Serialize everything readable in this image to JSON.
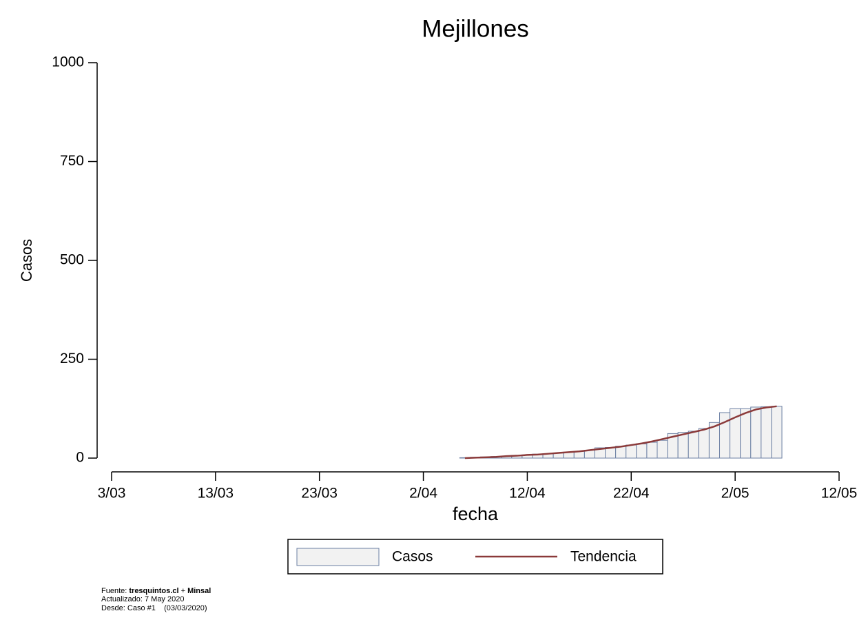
{
  "chart_data": {
    "type": "bar",
    "title": "Mejillones",
    "xlabel": "fecha",
    "ylabel": "Casos",
    "x": [
      "6/04",
      "7/04",
      "8/04",
      "9/04",
      "10/04",
      "11/04",
      "12/04",
      "13/04",
      "14/04",
      "15/04",
      "16/04",
      "17/04",
      "18/04",
      "19/04",
      "20/04",
      "21/04",
      "22/04",
      "23/04",
      "24/04",
      "25/04",
      "26/04",
      "27/04",
      "28/04",
      "29/04",
      "30/04",
      "1/05",
      "2/05",
      "3/05",
      "4/05",
      "5/05",
      "6/05"
    ],
    "series": [
      {
        "name": "Casos",
        "type": "bar",
        "color": "#f2f2f2",
        "edgecolor": "#6b7fa3",
        "values": [
          1,
          2,
          3,
          4,
          5,
          7,
          8,
          10,
          11,
          13,
          15,
          17,
          20,
          26,
          27,
          30,
          33,
          36,
          40,
          45,
          62,
          65,
          68,
          75,
          90,
          115,
          125,
          125,
          129,
          130,
          131
        ]
      },
      {
        "name": "Tendencia",
        "type": "line",
        "color": "#8b3a3a",
        "values": [
          0,
          1,
          2,
          3,
          5,
          6,
          8,
          9,
          11,
          13,
          15,
          17,
          20,
          23,
          26,
          29,
          33,
          37,
          42,
          48,
          54,
          60,
          66,
          72,
          80,
          91,
          103,
          114,
          123,
          128,
          131
        ]
      }
    ],
    "xlim": [
      "3/03",
      "12/05"
    ],
    "xticks": [
      "3/03",
      "13/03",
      "23/03",
      "2/04",
      "12/04",
      "22/04",
      "2/05",
      "12/05"
    ],
    "ylim": [
      0,
      1000
    ],
    "yticks": [
      0,
      250,
      500,
      750,
      1000
    ],
    "grid": false,
    "legend": "bottom"
  },
  "footer": {
    "source_label": "Fuente:",
    "source_site": "tresquintos.cl",
    "source_sep": "+",
    "source_org": "Minsal",
    "updated": "Actualizado: 7 May 2020",
    "since": "Desde: Caso #1    (03/03/2020)"
  }
}
